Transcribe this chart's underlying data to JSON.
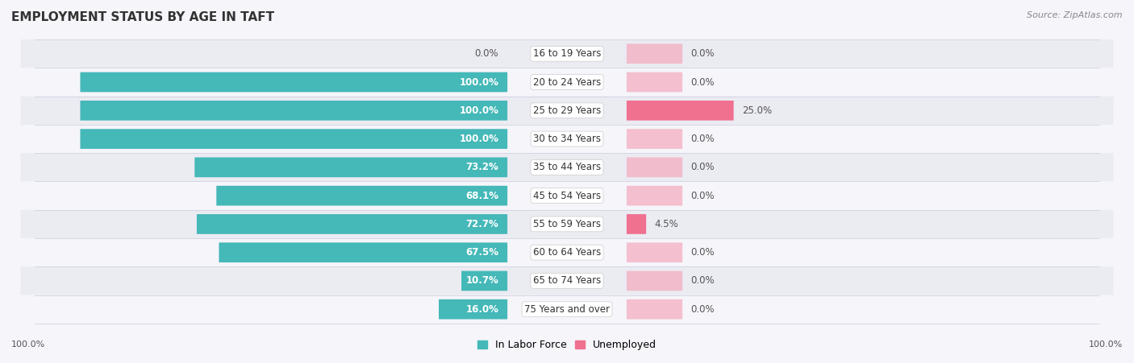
{
  "title": "EMPLOYMENT STATUS BY AGE IN TAFT",
  "source": "Source: ZipAtlas.com",
  "categories": [
    "16 to 19 Years",
    "20 to 24 Years",
    "25 to 29 Years",
    "30 to 34 Years",
    "35 to 44 Years",
    "45 to 54 Years",
    "55 to 59 Years",
    "60 to 64 Years",
    "65 to 74 Years",
    "75 Years and over"
  ],
  "labor_force": [
    0.0,
    100.0,
    100.0,
    100.0,
    73.2,
    68.1,
    72.7,
    67.5,
    10.7,
    16.0
  ],
  "unemployed": [
    0.0,
    0.0,
    25.0,
    0.0,
    0.0,
    0.0,
    4.5,
    0.0,
    0.0,
    0.0
  ],
  "labor_color": "#45b8b8",
  "unemployed_color": "#f07090",
  "unemployed_light_color": "#f4a8bc",
  "row_bg_colors": [
    "#ebebf2",
    "#f5f5fa"
  ],
  "background_color": "#f5f5fa",
  "axis_label_left": "100.0%",
  "axis_label_right": "100.0%",
  "max_val": 100.0,
  "title_fontsize": 11,
  "source_fontsize": 8,
  "label_fontsize": 8.5,
  "cat_fontsize": 8.5
}
